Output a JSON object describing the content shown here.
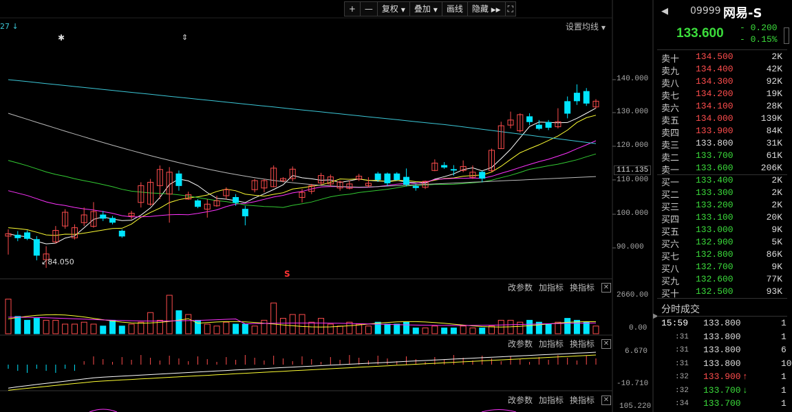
{
  "toolbar": {
    "plus": "+",
    "minus": "—",
    "fuquan": "复权",
    "diejia": "叠加",
    "huaxian": "画线",
    "yincang": "隐藏",
    "expand_icon": "expand-icon"
  },
  "kline_panel": {
    "top_left_value": "27",
    "setting_ma": "设置均线",
    "low_marker": "84.050",
    "axis": [
      "140.000",
      "130.000",
      "120.000",
      "110.000",
      "100.000",
      "90.000"
    ],
    "current_price_label": "111.135",
    "marker_s": "S"
  },
  "volume_panel": {
    "btn_params": "改参数",
    "btn_add": "加指标",
    "btn_swap": "换指标",
    "axis_top": "2660.00",
    "axis_bottom": "0.00"
  },
  "macd_panel": {
    "btn_params": "改参数",
    "btn_add": "加指标",
    "btn_swap": "换指标",
    "axis_top": "6.670",
    "axis_bottom": "-10.710"
  },
  "third_panel": {
    "btn_params": "改参数",
    "btn_add": "加指标",
    "btn_swap": "换指标",
    "axis_top": "105.220"
  },
  "quote": {
    "code": "09999",
    "name": "网易-S",
    "price": "133.600",
    "change": "- 0.200",
    "change_pct": "- 0.15%"
  },
  "orderbook": {
    "asks": [
      {
        "label": "卖十",
        "price": "134.500",
        "vol": "2K"
      },
      {
        "label": "卖九",
        "price": "134.400",
        "vol": "42K"
      },
      {
        "label": "卖八",
        "price": "134.300",
        "vol": "92K"
      },
      {
        "label": "卖七",
        "price": "134.200",
        "vol": "19K"
      },
      {
        "label": "卖六",
        "price": "134.100",
        "vol": "28K"
      },
      {
        "label": "卖五",
        "price": "134.000",
        "vol": "139K"
      },
      {
        "label": "卖四",
        "price": "133.900",
        "vol": "84K"
      },
      {
        "label": "卖三",
        "price": "133.800",
        "vol": "31K"
      },
      {
        "label": "卖二",
        "price": "133.700",
        "vol": "61K"
      },
      {
        "label": "卖一",
        "price": "133.600",
        "vol": "206K"
      }
    ],
    "bids": [
      {
        "label": "买一",
        "price": "133.400",
        "vol": "2K"
      },
      {
        "label": "买二",
        "price": "133.300",
        "vol": "2K"
      },
      {
        "label": "买三",
        "price": "133.200",
        "vol": "2K"
      },
      {
        "label": "买四",
        "price": "133.100",
        "vol": "20K"
      },
      {
        "label": "买五",
        "price": "133.000",
        "vol": "9K"
      },
      {
        "label": "买六",
        "price": "132.900",
        "vol": "5K"
      },
      {
        "label": "买七",
        "price": "132.800",
        "vol": "86K"
      },
      {
        "label": "买八",
        "price": "132.700",
        "vol": "9K"
      },
      {
        "label": "买九",
        "price": "132.600",
        "vol": "77K"
      },
      {
        "label": "买十",
        "price": "132.500",
        "vol": "93K"
      }
    ]
  },
  "timesales": {
    "title": "分时成交",
    "rows": [
      {
        "time": "15:59",
        "price": "133.800",
        "vol": "1"
      },
      {
        "time": ":31",
        "price": "133.800",
        "vol": "1"
      },
      {
        "time": ":31",
        "price": "133.800",
        "vol": "6"
      },
      {
        "time": ":31",
        "price": "133.800",
        "vol": "10"
      },
      {
        "time": ":32",
        "price": "133.900",
        "vol": "1",
        "arrow": "↑"
      },
      {
        "time": ":32",
        "price": "133.700",
        "vol": "1",
        "arrow": "↓"
      },
      {
        "time": ":34",
        "price": "133.700",
        "vol": "1"
      }
    ]
  },
  "colors": {
    "up": "#ff4d4d",
    "down": "#00e5ff",
    "green": "#3bdc3b",
    "ma5": "#ffffff",
    "ma10": "#ffff33",
    "ma20": "#ff33ff",
    "ma30": "#33cc33",
    "ma60": "#bbbbbb",
    "ma120": "#3cc8d8"
  }
}
